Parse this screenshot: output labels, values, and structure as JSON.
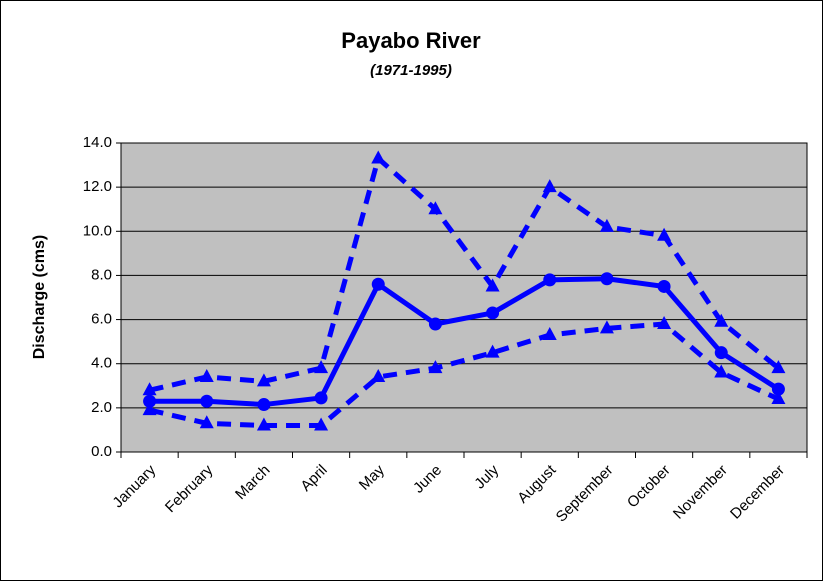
{
  "chart_data": {
    "type": "line",
    "title": "Payabo River",
    "subtitle": "(1971-1995)",
    "y_label": "Discharge (cms)",
    "categories": [
      "January",
      "February",
      "March",
      "April",
      "May",
      "June",
      "July",
      "August",
      "September",
      "October",
      "November",
      "December"
    ],
    "series": [
      {
        "color": "#0000ff",
        "dashed": false,
        "marker": "circle",
        "values": [
          2.3,
          2.3,
          2.15,
          2.45,
          7.6,
          5.8,
          6.3,
          7.8,
          7.85,
          7.5,
          4.5,
          2.85
        ]
      },
      {
        "color": "#0000ff",
        "dashed": true,
        "marker": "triangle",
        "values": [
          2.8,
          3.4,
          3.2,
          3.8,
          13.3,
          11.0,
          7.5,
          12.0,
          10.2,
          9.8,
          5.9,
          3.8
        ]
      },
      {
        "color": "#0000ff",
        "dashed": true,
        "marker": "triangle",
        "values": [
          1.9,
          1.3,
          1.2,
          1.2,
          3.4,
          3.8,
          4.5,
          5.3,
          5.6,
          5.8,
          3.6,
          2.4
        ]
      }
    ],
    "ylim": [
      0,
      14
    ],
    "yticks": [
      {
        "value": 0,
        "label": "0.0"
      },
      {
        "value": 2,
        "label": "2.0"
      },
      {
        "value": 4,
        "label": "4.0"
      },
      {
        "value": 6,
        "label": "6.0"
      },
      {
        "value": 8,
        "label": "8.0"
      },
      {
        "value": 10,
        "label": "10.0"
      },
      {
        "value": 12,
        "label": "12.0"
      },
      {
        "value": 14,
        "label": "14.0"
      }
    ],
    "grid": true,
    "plot_background": "#c0c0c0"
  }
}
